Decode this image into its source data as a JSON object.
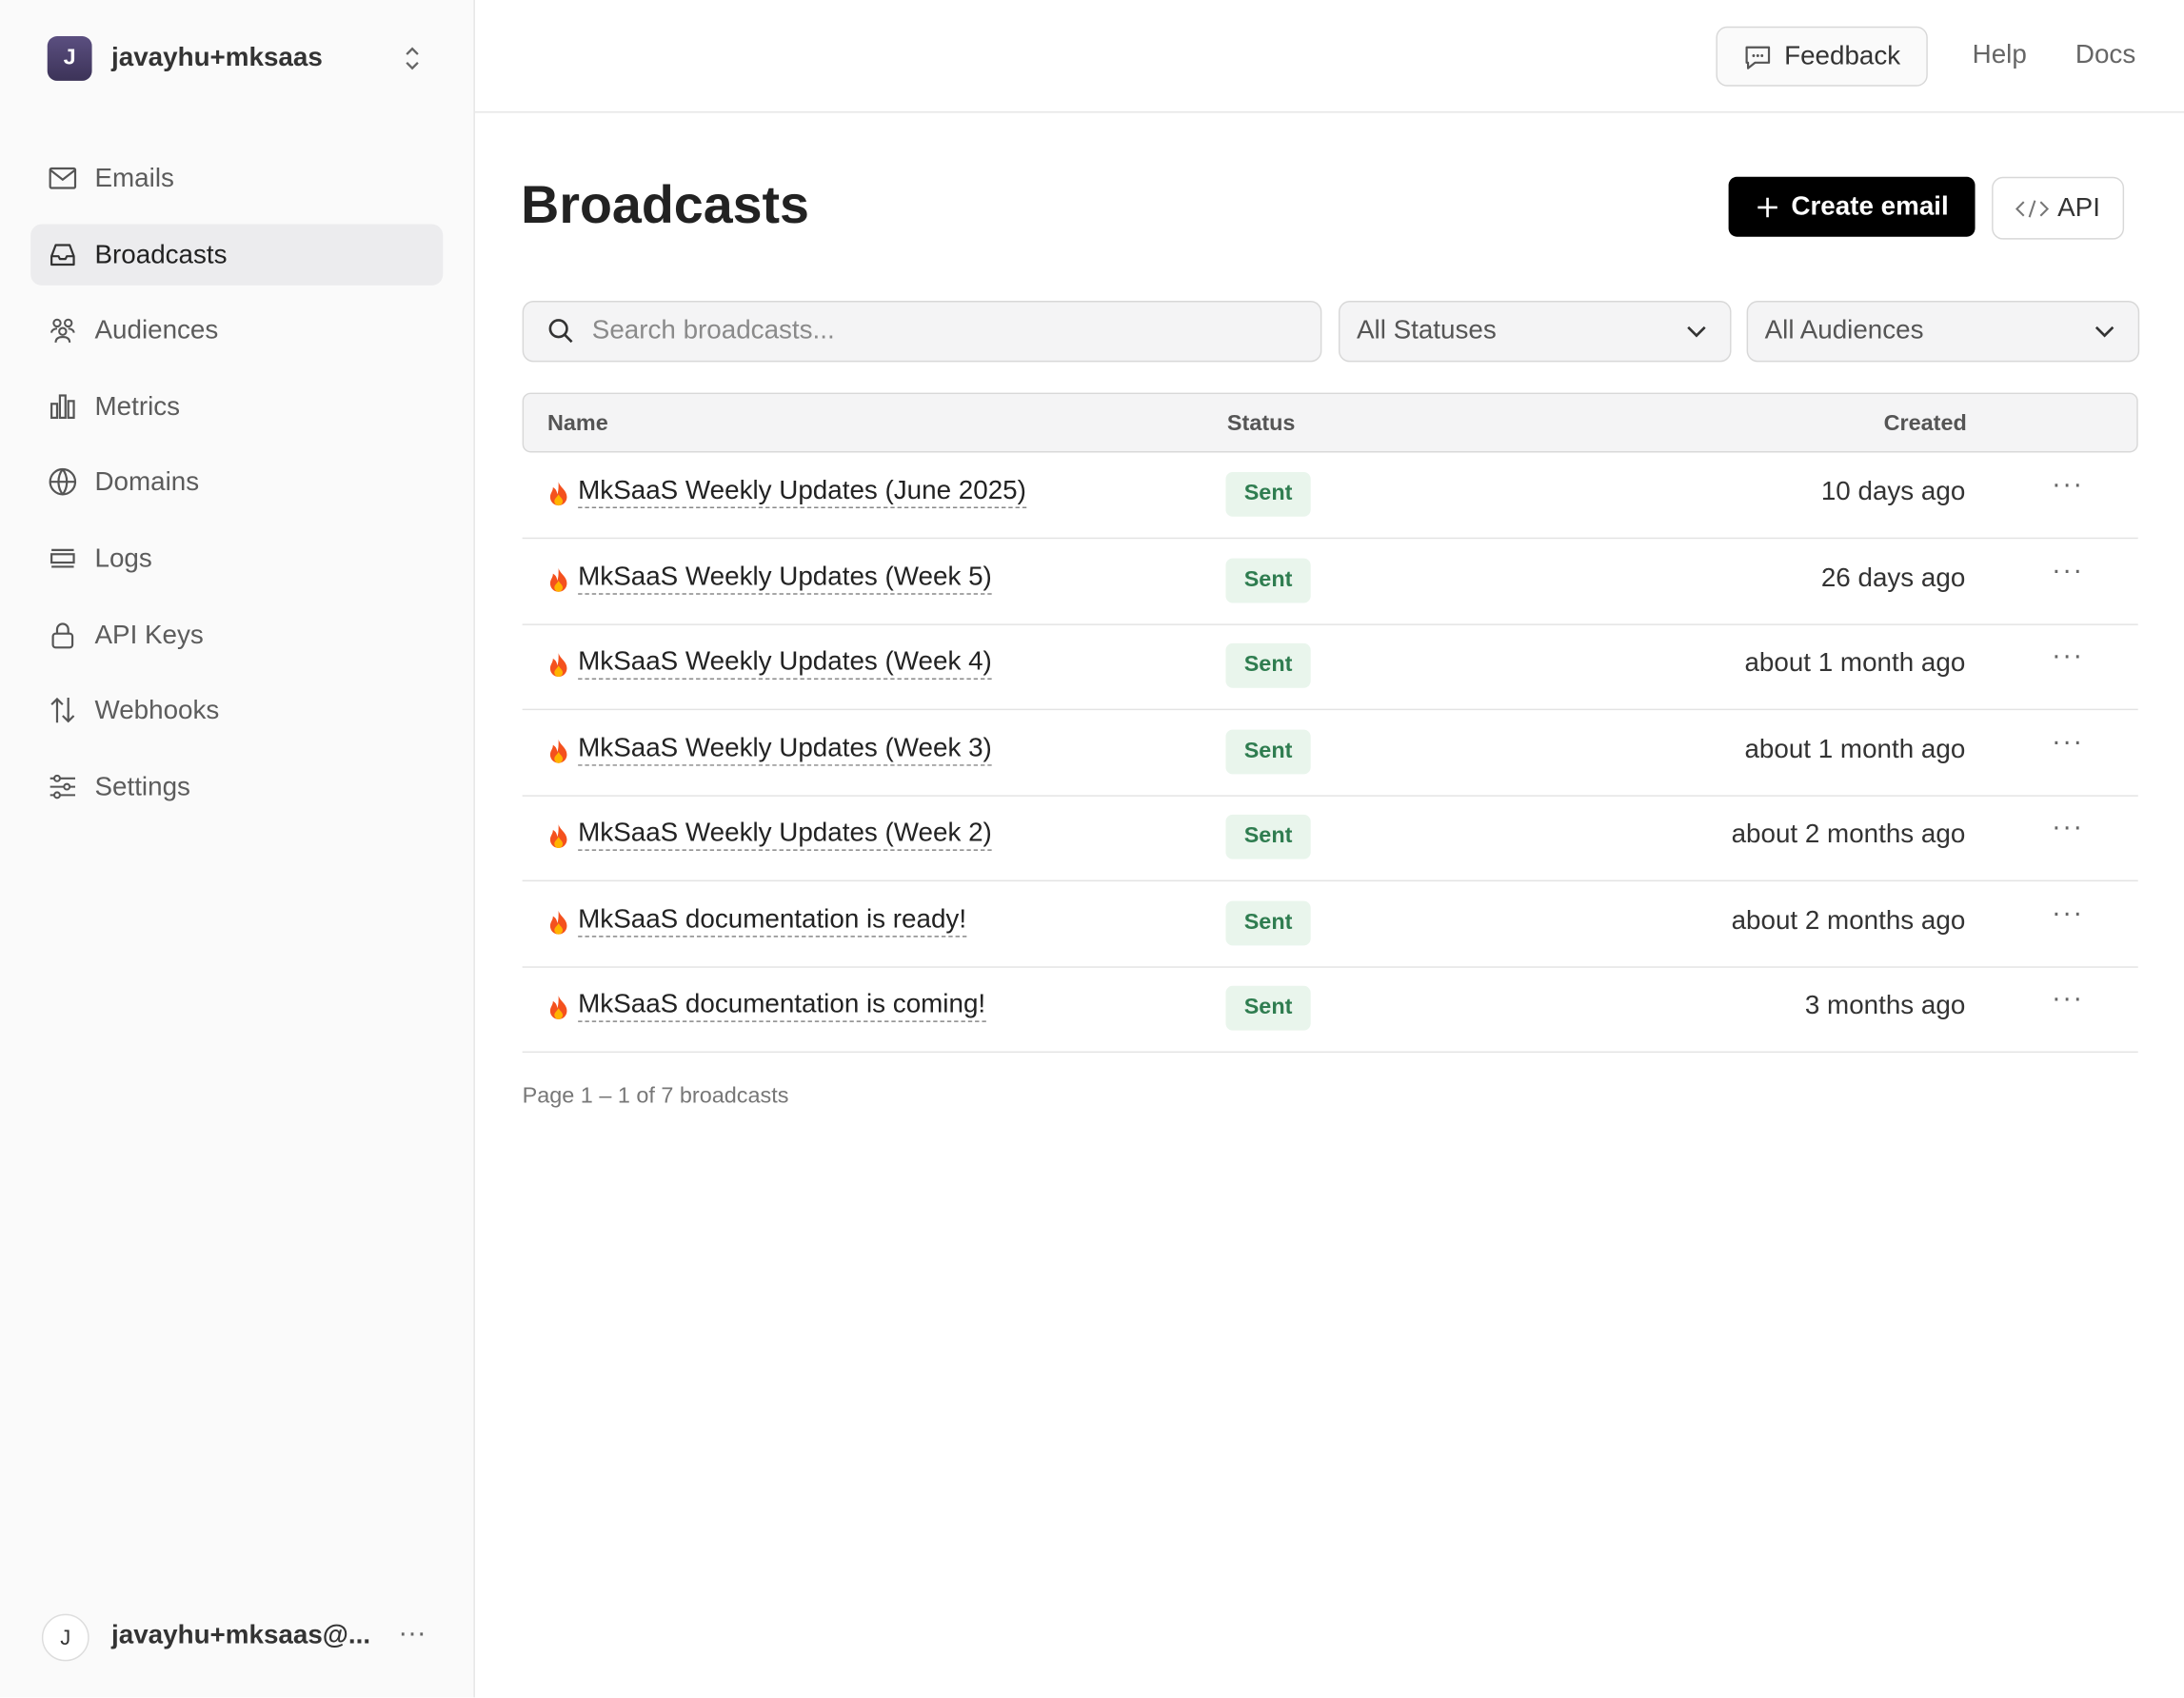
{
  "sidebar": {
    "workspace": {
      "initial": "J",
      "name": "javayhu+mksaas"
    },
    "nav": [
      "Emails",
      "Broadcasts",
      "Audiences",
      "Metrics",
      "Domains",
      "Logs",
      "API Keys",
      "Webhooks",
      "Settings"
    ],
    "user": {
      "initial": "J",
      "name": "javayhu+mksaas@..."
    }
  },
  "header": {
    "links": [
      "Feedback",
      "Help",
      "Docs"
    ]
  },
  "main": {
    "title": "Broadcasts",
    "actions": [
      "Create email",
      "API"
    ],
    "search_placeholder": "Search broadcasts...",
    "filters": [
      "All Statuses",
      "All Audiences"
    ],
    "table": {
      "columns": [
        "Name",
        "Status",
        "Created"
      ],
      "rows": [
        [
          "MkSaaS Weekly Updates (June 2025)",
          "Sent",
          "10 days ago"
        ],
        [
          "MkSaaS Weekly Updates (Week 5)",
          "Sent",
          "26 days ago"
        ],
        [
          "MkSaaS Weekly Updates (Week 4)",
          "Sent",
          "about 1 month ago"
        ],
        [
          "MkSaaS Weekly Updates (Week 3)",
          "Sent",
          "about 1 month ago"
        ],
        [
          "MkSaaS Weekly Updates (Week 2)",
          "Sent",
          "about 2 months ago"
        ],
        [
          "MkSaaS documentation is ready!",
          "Sent",
          "about 2 months ago"
        ],
        [
          "MkSaaS documentation is coming!",
          "Sent",
          "3 months ago"
        ]
      ]
    },
    "pagination": "Page 1 – 1 of 7 broadcasts"
  }
}
